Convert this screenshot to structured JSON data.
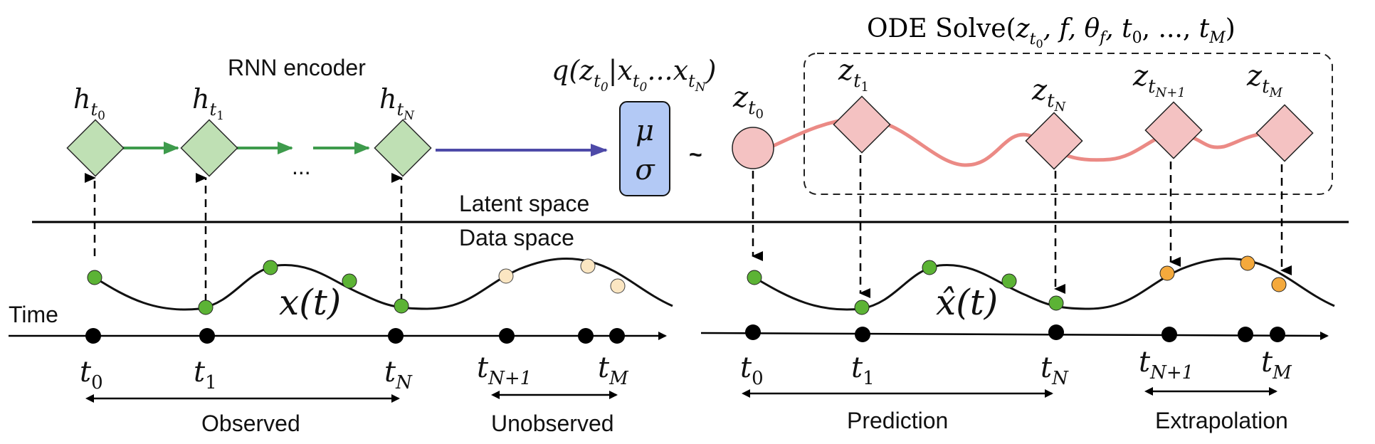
{
  "colors": {
    "encoder_node": "#bfe0b4",
    "encoder_stroke": "#2b2b2b",
    "encoder_arrow": "#3e9b4c",
    "to_posterior_arrow": "#4e4aa8",
    "posterior_box": "#b3c9f5",
    "latent_node": "#f4c2c2",
    "latent_curve": "#eb8a85",
    "obs_point": "#5cb335",
    "unobs_point": "#fbe6c2",
    "extrap_point": "#f4a93c"
  },
  "labels": {
    "rnn_encoder": "RNN encoder",
    "latent_space": "Latent space",
    "data_space": "Data space",
    "time": "Time",
    "ellipsis": "...",
    "tilde": "~",
    "observed": "Observed",
    "unobserved": "Unobserved",
    "prediction": "Prediction",
    "extrapolation": "Extrapolation"
  },
  "math": {
    "posterior": "q(z_t0 | x_t0 ... x_tN)",
    "ode_solve": "ODE Solve(z_t0, f, θ_f, t0, ..., t_M)",
    "mu": "μ",
    "sigma": "σ",
    "x_of_t": "x(t)",
    "x_hat_of_t": "x̂(t)"
  },
  "encoder_nodes": [
    {
      "base": "h",
      "sub": "t",
      "subsub": "0"
    },
    {
      "base": "h",
      "sub": "t",
      "subsub": "1"
    },
    {
      "base": "h",
      "sub": "t",
      "subsub": "N"
    }
  ],
  "latent_nodes": [
    {
      "base": "z",
      "sub": "t",
      "subsub": "0"
    },
    {
      "base": "z",
      "sub": "t",
      "subsub": "1"
    },
    {
      "base": "z",
      "sub": "t",
      "subsub": "N"
    },
    {
      "base": "z",
      "sub": "t",
      "subsub": "N+1"
    },
    {
      "base": "z",
      "sub": "t",
      "subsub": "M"
    }
  ],
  "time_ticks_left": [
    {
      "base": "t",
      "sub": "0"
    },
    {
      "base": "t",
      "sub": "1"
    },
    {
      "base": "t",
      "sub": "N"
    },
    {
      "base": "t",
      "sub": "N+1"
    },
    {
      "base": "t",
      "sub": "M"
    }
  ],
  "time_ticks_right": [
    {
      "base": "t",
      "sub": "0"
    },
    {
      "base": "t",
      "sub": "1"
    },
    {
      "base": "t",
      "sub": "N"
    },
    {
      "base": "t",
      "sub": "N+1"
    },
    {
      "base": "t",
      "sub": "M"
    }
  ]
}
